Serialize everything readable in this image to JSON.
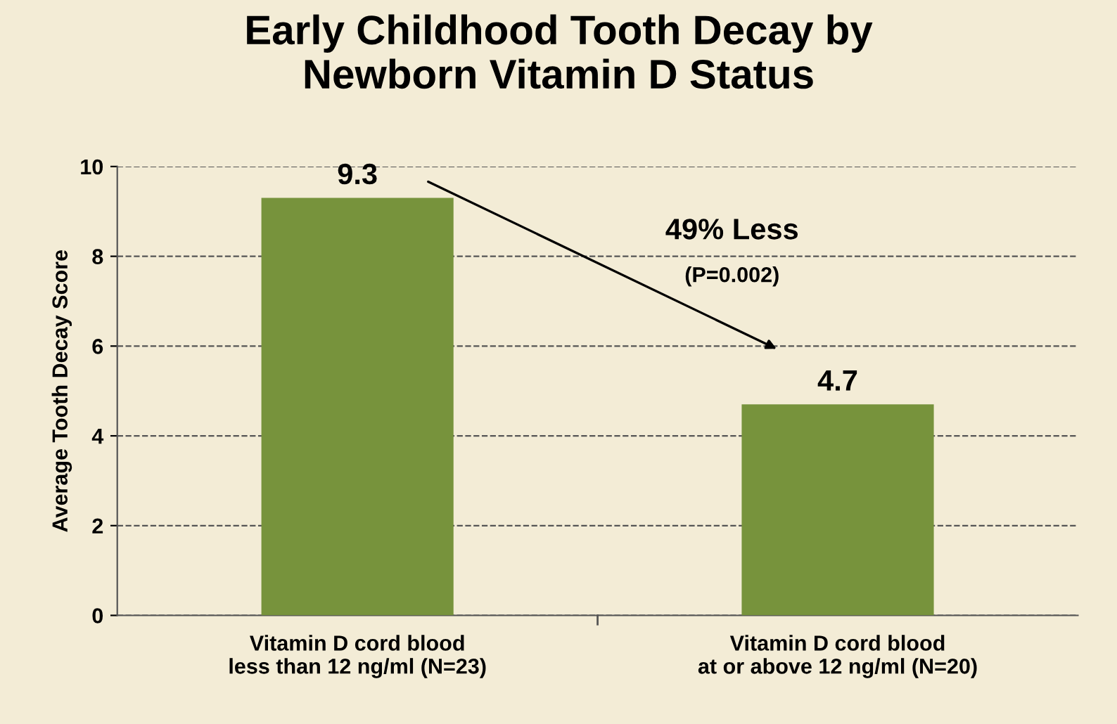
{
  "chart_data": {
    "type": "bar",
    "title": "Early Childhood Tooth Decay by\nNewborn Vitamin D Status",
    "ylabel": "Average Tooth Decay Score",
    "categories": [
      "Vitamin D cord blood\nless than 12 ng/ml (N=23)",
      "Vitamin D cord blood\nat or above 12 ng/ml (N=20)"
    ],
    "values": [
      9.3,
      4.7
    ],
    "color": "#77933c",
    "ylim": [
      0,
      10
    ],
    "yticks": [
      0,
      2,
      4,
      6,
      8,
      10
    ],
    "grid": "y",
    "data_labels": true,
    "annotations": [
      "49% Less",
      "(P=0.002)"
    ]
  }
}
